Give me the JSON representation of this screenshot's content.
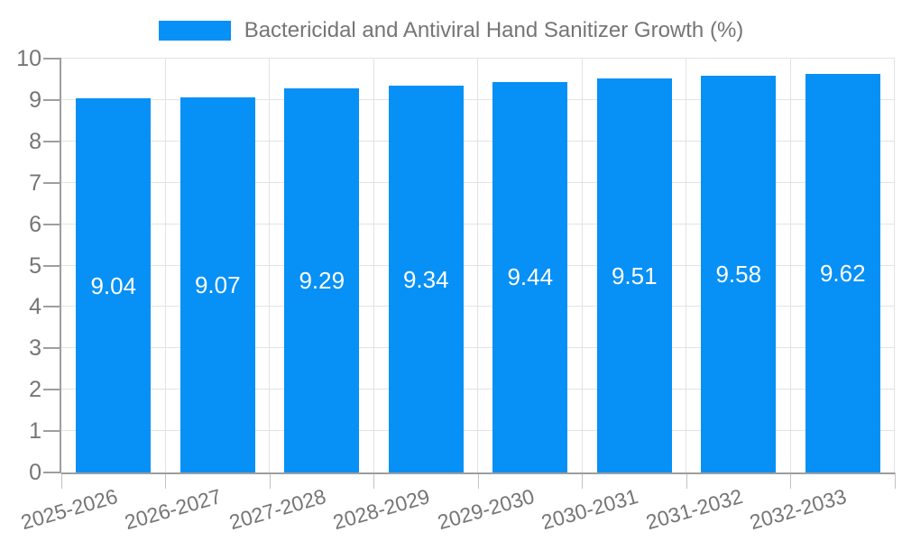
{
  "chart_data": {
    "type": "bar",
    "title": "Bactericidal and Antiviral Hand Sanitizer Growth (%)",
    "categories": [
      "2025-2026",
      "2026-2027",
      "2027-2028",
      "2028-2029",
      "2029-2030",
      "2030-2031",
      "2031-2032",
      "2032-2033"
    ],
    "values": [
      9.04,
      9.07,
      9.29,
      9.34,
      9.44,
      9.51,
      9.58,
      9.62
    ],
    "value_labels": [
      "9.04",
      "9.07",
      "9.29",
      "9.34",
      "9.44",
      "9.51",
      "9.58",
      "9.62"
    ],
    "xlabel": "",
    "ylabel": "",
    "ylim": [
      0,
      10
    ],
    "yticks": [
      0,
      1,
      2,
      3,
      4,
      5,
      6,
      7,
      8,
      9,
      10
    ],
    "grid": true,
    "legend_position": "top",
    "x_label_rotation_deg": -16,
    "colors": {
      "bar": "#0790f5",
      "grid": "#e3e3e3",
      "axis": "#9e9e9e",
      "minor_tick": "#c2c2c2",
      "tick_label": "#757575",
      "legend_text": "#757575",
      "bar_label": "#ffffff",
      "background": "#ffffff"
    }
  }
}
